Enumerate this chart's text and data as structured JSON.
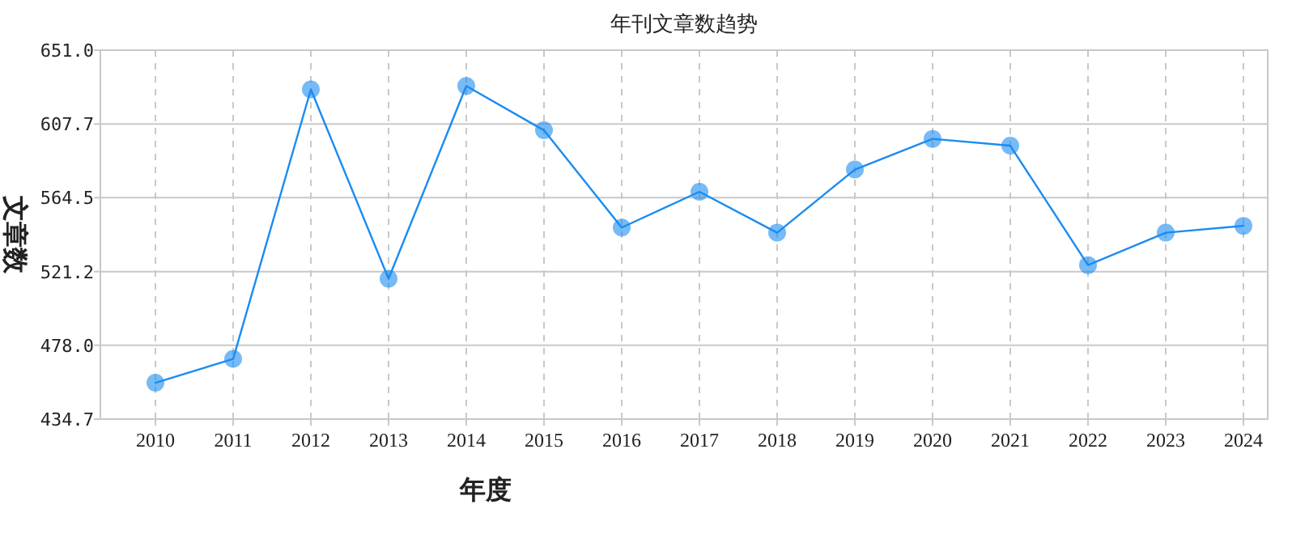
{
  "chart_data": {
    "type": "line",
    "title": "年刊文章数趋势",
    "xlabel": "年度",
    "ylabel": "文章数",
    "categories": [
      "2010",
      "2011",
      "2012",
      "2013",
      "2014",
      "2015",
      "2016",
      "2017",
      "2018",
      "2019",
      "2020",
      "2021",
      "2022",
      "2023",
      "2024"
    ],
    "series": [
      {
        "color": "#1a8cf0",
        "values": [
          456,
          470,
          628,
          517,
          630,
          604,
          547,
          568,
          544,
          581,
          599,
          595,
          525,
          544,
          548
        ]
      }
    ],
    "ylim": [
      434.7,
      651.0
    ],
    "yticks": [
      {
        "value": 434.7,
        "label": "434.7"
      },
      {
        "value": 478.0,
        "label": "478.0"
      },
      {
        "value": 521.2,
        "label": "521.2"
      },
      {
        "value": 564.5,
        "label": "564.5"
      },
      {
        "value": 607.7,
        "label": "607.7"
      },
      {
        "value": 651.0,
        "label": "651.0"
      }
    ],
    "grid": true,
    "marker": "circle",
    "line_style": "solid"
  }
}
